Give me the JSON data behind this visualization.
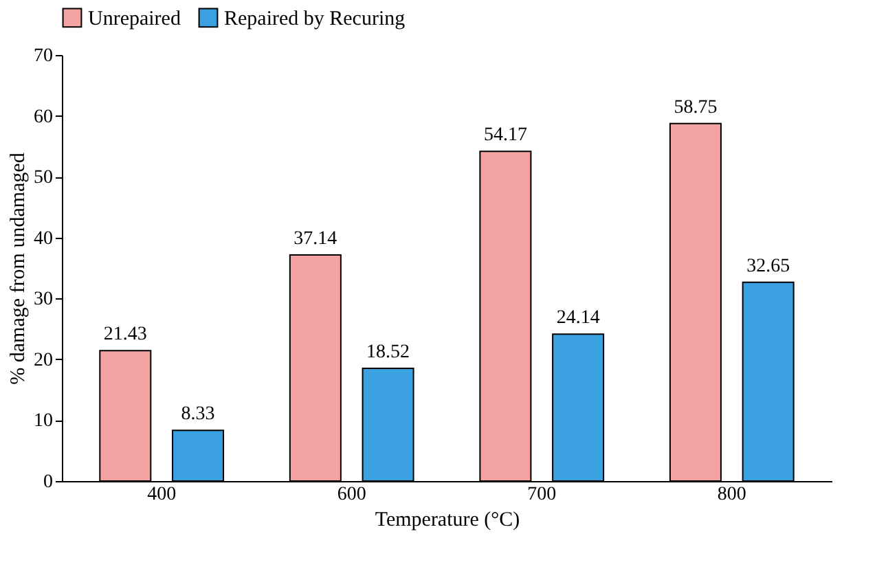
{
  "chart_data": {
    "type": "bar",
    "xlabel": "Temperature (°C)",
    "ylabel": "% damage from undamaged",
    "categories": [
      "400",
      "600",
      "700",
      "800"
    ],
    "series": [
      {
        "name": "Unrepaired",
        "color": "#f4a3a3",
        "values": [
          21.43,
          37.14,
          54.17,
          58.75
        ]
      },
      {
        "name": "Repaired by Recuring",
        "color": "#3aa0e0",
        "values": [
          8.33,
          18.52,
          24.14,
          32.65
        ]
      }
    ],
    "ylim": [
      0,
      70
    ],
    "yticks": [
      0,
      10,
      20,
      30,
      40,
      50,
      60,
      70
    ],
    "grid": false,
    "legend": "top",
    "data_labels": true
  }
}
